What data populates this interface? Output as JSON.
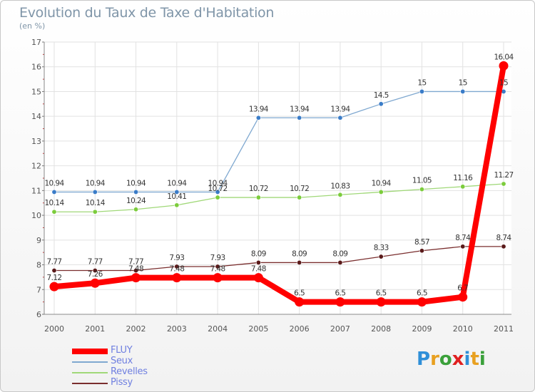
{
  "title": "Evolution du Taux de Taxe d'Habitation",
  "subtitle": "(en %)",
  "logo": {
    "text": "Proxiti",
    "colors": [
      "#2f8fd8",
      "#e8a020",
      "#3aa03a",
      "#e02020",
      "#2f8fd8",
      "#e8a020",
      "#3aa03a"
    ]
  },
  "chart_data": {
    "type": "line",
    "x": [
      "2000",
      "2001",
      "2002",
      "2003",
      "2004",
      "2005",
      "2006",
      "2007",
      "2008",
      "2009",
      "2010",
      "2011"
    ],
    "ylim": [
      6,
      17
    ],
    "yticks": [
      "6",
      "7",
      "8",
      "9",
      "10",
      "11",
      "12",
      "13",
      "14",
      "15",
      "16",
      "17"
    ],
    "grid": true,
    "legend_position": "bottom-left",
    "series": [
      {
        "name": "FLUY",
        "color": "#ff0000",
        "values": [
          7.12,
          7.26,
          7.48,
          7.48,
          7.48,
          7.48,
          6.5,
          6.5,
          6.5,
          6.5,
          6.7,
          16.04
        ],
        "labels": [
          "7.12",
          "7.26",
          "7.48",
          "7.48",
          "7.48",
          "7.48",
          "6.5",
          "6.5",
          "6.5",
          "6.5",
          "6.7",
          "16.04"
        ]
      },
      {
        "name": "Seux",
        "color": "#7fa8d0",
        "values": [
          10.94,
          10.94,
          10.94,
          10.94,
          10.94,
          13.94,
          13.94,
          13.94,
          14.5,
          15,
          15,
          15
        ],
        "labels": [
          "10.94",
          "10.94",
          "10.94",
          "10.94",
          "10.94",
          "13.94",
          "13.94",
          "13.94",
          "14.5",
          "15",
          "15",
          "15"
        ]
      },
      {
        "name": "Revelles",
        "color": "#a0d878",
        "values": [
          10.14,
          10.14,
          10.24,
          10.41,
          10.72,
          10.72,
          10.72,
          10.83,
          10.94,
          11.05,
          11.16,
          11.27
        ],
        "labels": [
          "10.14",
          "10.14",
          "10.24",
          "10.41",
          "10.72",
          "10.72",
          "10.72",
          "10.83",
          "10.94",
          "11.05",
          "11.16",
          "11.27"
        ]
      },
      {
        "name": "Pissy",
        "color": "#7a2e2e",
        "values": [
          7.77,
          7.77,
          7.77,
          7.93,
          7.93,
          8.09,
          8.09,
          8.09,
          8.33,
          8.57,
          8.74,
          8.74
        ],
        "labels": [
          "7.77",
          "7.77",
          "7.77",
          "7.93",
          "7.93",
          "8.09",
          "8.09",
          "8.09",
          "8.33",
          "8.57",
          "8.74",
          "8.74"
        ]
      }
    ]
  }
}
